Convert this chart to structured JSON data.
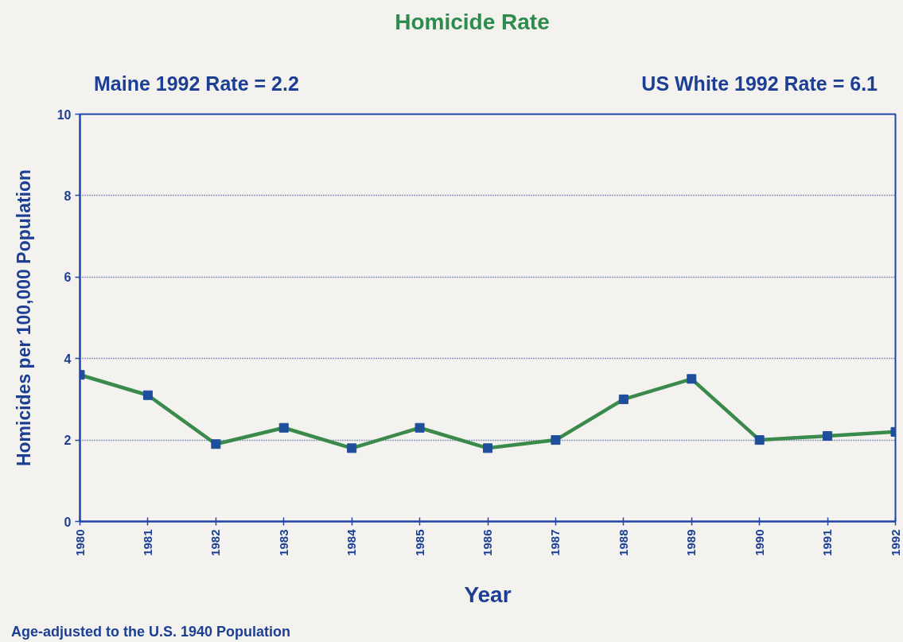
{
  "chart_data": {
    "type": "line",
    "title": "Homicide Rate",
    "xlabel": "Year",
    "ylabel": "Homicides per 100,000 Population",
    "annotations": [
      "Maine 1992 Rate = 2.2",
      "US White 1992 Rate = 6.1",
      "Age-adjusted to the U.S. 1940 Population"
    ],
    "x": [
      1980,
      1981,
      1982,
      1983,
      1984,
      1985,
      1986,
      1987,
      1988,
      1989,
      1990,
      1991,
      1992
    ],
    "series": [
      {
        "color": "#3a8a4c",
        "colors": [
          "#1f4e9c",
          "#1f4e9c",
          "#1f4e9c",
          "#1f4e9c",
          "#1f4e9c",
          "#1f4e9c",
          "#1f4e9c",
          "#1f4e9c",
          "#1f4e9c",
          "#1f4e9c",
          "#1f4e9c",
          "#1f4e9c",
          "#1f4e9c"
        ],
        "values": [
          3.6,
          3.1,
          1.9,
          2.3,
          1.8,
          2.3,
          1.8,
          2.0,
          3.0,
          3.5,
          2.0,
          2.1,
          2.2
        ]
      }
    ],
    "xlim": [
      1980,
      1992
    ],
    "xticks": [
      1980,
      1981,
      1982,
      1983,
      1984,
      1985,
      1986,
      1987,
      1988,
      1989,
      1990,
      1991,
      1992
    ],
    "ylim": [
      0,
      10
    ],
    "yticks": [
      0,
      2,
      4,
      6,
      8,
      10
    ],
    "grid": "y",
    "marker": "square",
    "line_style": "solid"
  }
}
